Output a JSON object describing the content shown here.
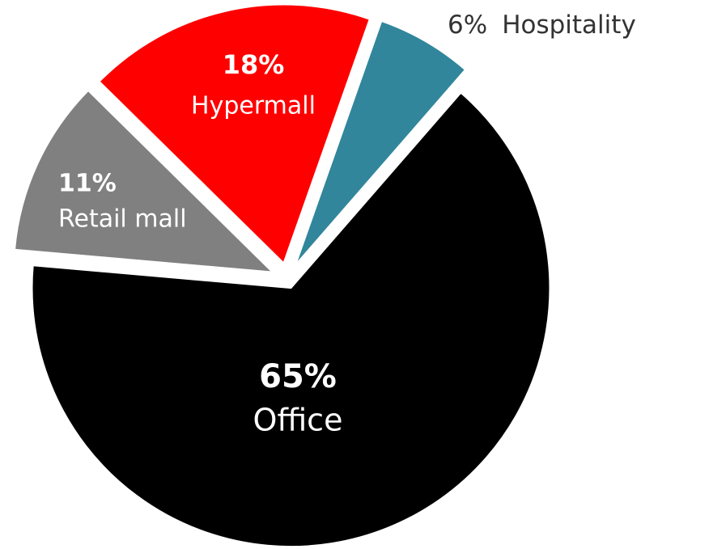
{
  "chart_data": {
    "type": "pie",
    "categories": [
      "Office",
      "Retail mall",
      "Hypermall",
      "Hospitality"
    ],
    "values": [
      65,
      11,
      18,
      6
    ],
    "value_labels": [
      "65%",
      "11%",
      "18%",
      "6%"
    ],
    "colors": [
      "#000000",
      "#808080",
      "#ff0000",
      "#31869b"
    ]
  }
}
